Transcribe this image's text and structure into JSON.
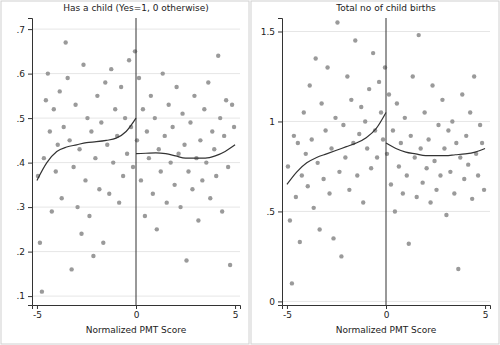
{
  "chart_data": [
    {
      "type": "scatter",
      "title": "Has a child (Yes=1, 0 otherwise)",
      "x_label": "Normalized PMT Score",
      "xlim": [
        -5.25,
        5.25
      ],
      "ylim": [
        0.08,
        0.725
      ],
      "xticks": [
        -5,
        0,
        5
      ],
      "yticks": [
        {
          "value": 0.1,
          "label": ".1"
        },
        {
          "value": 0.2,
          "label": ".2"
        },
        {
          "value": 0.3,
          "label": ".3"
        },
        {
          "value": 0.4,
          "label": ".4"
        },
        {
          "value": 0.5,
          "label": ".5"
        },
        {
          "value": 0.6,
          "label": ".6"
        },
        {
          "value": 0.7,
          "label": ".7"
        }
      ],
      "grid": true,
      "vline": 0,
      "series": [
        {
          "type": "scatter",
          "color": "#9a9a9a",
          "marker": "circle",
          "x": [
            -4.95,
            -4.85,
            -4.75,
            -4.65,
            -4.55,
            -4.45,
            -4.35,
            -4.25,
            -4.15,
            -4.05,
            -3.95,
            -3.85,
            -3.75,
            -3.65,
            -3.55,
            -3.45,
            -3.35,
            -3.25,
            -3.15,
            -3.05,
            -2.95,
            -2.85,
            -2.75,
            -2.65,
            -2.55,
            -2.45,
            -2.35,
            -2.25,
            -2.15,
            -2.05,
            -1.95,
            -1.85,
            -1.75,
            -1.65,
            -1.55,
            -1.45,
            -1.35,
            -1.25,
            -1.15,
            -1.05,
            -0.95,
            -0.85,
            -0.75,
            -0.65,
            -0.55,
            -0.45,
            -0.35,
            -0.25,
            -0.15,
            -0.05,
            0.05,
            0.15,
            0.25,
            0.35,
            0.45,
            0.55,
            0.65,
            0.75,
            0.85,
            0.95,
            1.05,
            1.15,
            1.25,
            1.35,
            1.45,
            1.55,
            1.65,
            1.75,
            1.85,
            1.95,
            2.05,
            2.15,
            2.25,
            2.35,
            2.45,
            2.55,
            2.65,
            2.75,
            2.85,
            2.95,
            3.05,
            3.15,
            3.25,
            3.35,
            3.45,
            3.55,
            3.65,
            3.75,
            3.85,
            3.95,
            4.05,
            4.15,
            4.25,
            4.35,
            4.45,
            4.55,
            4.65,
            4.75,
            4.85,
            4.95
          ],
          "values": [
            0.37,
            0.22,
            0.11,
            0.41,
            0.54,
            0.6,
            0.47,
            0.29,
            0.52,
            0.38,
            0.44,
            0.56,
            0.32,
            0.48,
            0.67,
            0.59,
            0.45,
            0.16,
            0.39,
            0.53,
            0.3,
            0.43,
            0.24,
            0.62,
            0.36,
            0.5,
            0.28,
            0.47,
            0.19,
            0.41,
            0.55,
            0.34,
            0.49,
            0.22,
            0.58,
            0.44,
            0.33,
            0.61,
            0.4,
            0.52,
            0.46,
            0.31,
            0.57,
            0.37,
            0.5,
            0.42,
            0.63,
            0.48,
            0.39,
            0.65,
            0.45,
            0.59,
            0.36,
            0.52,
            0.28,
            0.47,
            0.41,
            0.55,
            0.33,
            0.5,
            0.25,
            0.43,
            0.38,
            0.6,
            0.46,
            0.31,
            0.53,
            0.4,
            0.48,
            0.35,
            0.57,
            0.42,
            0.3,
            0.51,
            0.44,
            0.18,
            0.38,
            0.49,
            0.34,
            0.55,
            0.41,
            0.27,
            0.45,
            0.36,
            0.52,
            0.4,
            0.58,
            0.32,
            0.47,
            0.43,
            0.37,
            0.64,
            0.5,
            0.29,
            0.46,
            0.54,
            0.39,
            0.17,
            0.53,
            0.48
          ]
        },
        {
          "type": "line",
          "color": "#333333",
          "line_style": "solid",
          "x": [
            -5,
            -4.5,
            -4,
            -3.5,
            -3,
            -2.5,
            -2,
            -1.5,
            -1,
            -0.5,
            0
          ],
          "values": [
            0.36,
            0.4,
            0.425,
            0.435,
            0.44,
            0.445,
            0.447,
            0.45,
            0.455,
            0.47,
            0.5
          ]
        },
        {
          "type": "line",
          "color": "#333333",
          "line_style": "solid",
          "x": [
            0,
            0.5,
            1,
            1.5,
            2,
            2.5,
            3,
            3.5,
            4,
            4.5,
            5
          ],
          "values": [
            0.42,
            0.421,
            0.422,
            0.42,
            0.415,
            0.41,
            0.41,
            0.41,
            0.415,
            0.425,
            0.44
          ]
        }
      ]
    },
    {
      "type": "scatter",
      "title": "Total no of child births",
      "x_label": "Normalized PMT Score",
      "xlim": [
        -5.25,
        5.25
      ],
      "ylim": [
        -0.02,
        1.575
      ],
      "xticks": [
        -5,
        0,
        5
      ],
      "yticks": [
        0,
        {
          "value": 0.5,
          "label": ".5"
        },
        1,
        1.5
      ],
      "grid": true,
      "vline": 0,
      "series": [
        {
          "type": "scatter",
          "color": "#9a9a9a",
          "marker": "circle",
          "x": [
            -4.95,
            -4.85,
            -4.75,
            -4.65,
            -4.55,
            -4.45,
            -4.35,
            -4.25,
            -4.15,
            -4.05,
            -3.95,
            -3.85,
            -3.75,
            -3.65,
            -3.55,
            -3.45,
            -3.35,
            -3.25,
            -3.15,
            -3.05,
            -2.95,
            -2.85,
            -2.75,
            -2.65,
            -2.55,
            -2.45,
            -2.35,
            -2.25,
            -2.15,
            -2.05,
            -1.95,
            -1.85,
            -1.75,
            -1.65,
            -1.55,
            -1.45,
            -1.35,
            -1.25,
            -1.15,
            -1.05,
            -0.95,
            -0.85,
            -0.75,
            -0.65,
            -0.55,
            -0.45,
            -0.35,
            -0.25,
            -0.15,
            -0.05,
            0.05,
            0.15,
            0.25,
            0.35,
            0.45,
            0.55,
            0.65,
            0.75,
            0.85,
            0.95,
            1.05,
            1.15,
            1.25,
            1.35,
            1.45,
            1.55,
            1.65,
            1.75,
            1.85,
            1.95,
            2.05,
            2.15,
            2.25,
            2.35,
            2.45,
            2.55,
            2.65,
            2.75,
            2.85,
            2.95,
            3.05,
            3.15,
            3.25,
            3.35,
            3.45,
            3.55,
            3.65,
            3.75,
            3.85,
            3.95,
            4.05,
            4.15,
            4.25,
            4.35,
            4.45,
            4.55,
            4.65,
            4.75,
            4.85,
            4.95
          ],
          "values": [
            0.75,
            0.45,
            0.1,
            0.92,
            0.58,
            0.88,
            0.33,
            0.7,
            1.05,
            0.82,
            0.64,
            1.2,
            0.9,
            0.52,
            1.35,
            0.77,
            0.4,
            1.1,
            0.68,
            0.95,
            1.3,
            0.6,
            0.85,
            0.35,
            1.02,
            1.55,
            0.72,
            0.25,
            0.98,
            0.8,
            1.25,
            0.62,
            1.12,
            0.88,
            1.45,
            0.7,
            0.93,
            1.08,
            0.55,
            1.0,
            0.85,
            1.18,
            0.74,
            1.38,
            0.95,
            0.8,
            1.22,
            1.05,
            0.9,
            1.3,
            0.82,
            1.15,
            0.65,
            0.95,
            0.5,
            1.1,
            0.75,
            0.88,
            0.6,
            1.02,
            0.7,
            0.32,
            0.92,
            1.25,
            0.8,
            0.58,
            1.48,
            0.85,
            0.66,
            1.05,
            0.74,
            0.9,
            0.55,
            1.2,
            0.78,
            0.62,
            0.98,
            0.7,
            1.12,
            0.85,
            0.48,
            0.95,
            0.72,
            1.0,
            0.6,
            0.88,
            0.18,
            0.8,
            1.15,
            0.68,
            0.92,
            0.76,
            1.05,
            0.57,
            1.25,
            0.82,
            0.7,
            0.98,
            0.88,
            0.62
          ]
        },
        {
          "type": "line",
          "color": "#333333",
          "line_style": "solid",
          "x": [
            -5,
            -4.5,
            -4,
            -3.5,
            -3,
            -2.5,
            -2,
            -1.5,
            -1,
            -0.5,
            0
          ],
          "values": [
            0.65,
            0.72,
            0.77,
            0.8,
            0.82,
            0.84,
            0.86,
            0.88,
            0.91,
            0.96,
            1.05
          ]
        },
        {
          "type": "line",
          "color": "#333333",
          "line_style": "solid",
          "x": [
            0,
            0.5,
            1,
            1.5,
            2,
            2.5,
            3,
            3.5,
            4,
            4.5,
            5
          ],
          "values": [
            0.88,
            0.85,
            0.83,
            0.82,
            0.81,
            0.81,
            0.81,
            0.815,
            0.82,
            0.83,
            0.85
          ]
        }
      ]
    }
  ]
}
